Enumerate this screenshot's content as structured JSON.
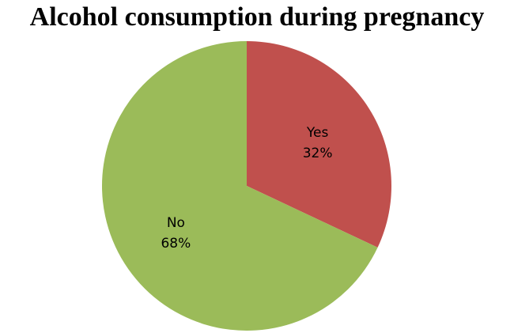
{
  "chart_data": {
    "type": "pie",
    "title": "Alcohol consumption during pregnancy",
    "slices": [
      {
        "label": "Yes",
        "value": 32,
        "value_label": "32%",
        "color": "#C0504D"
      },
      {
        "label": "No",
        "value": 68,
        "value_label": "68%",
        "color": "#9BBB59"
      }
    ],
    "start": "12 o'clock",
    "direction": "clockwise",
    "legend": "none",
    "labels_inside": true
  }
}
